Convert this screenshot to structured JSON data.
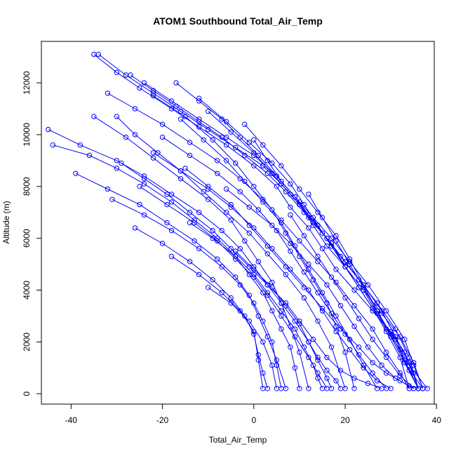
{
  "chart_data": {
    "type": "line",
    "title": "ATOM1 Southbound Total_Air_Temp",
    "xlabel": "Total_Air_Temp",
    "ylabel": "Altitude (m)",
    "xlim": [
      -46.5,
      39.5
    ],
    "ylim": [
      -400,
      13600
    ],
    "xticks": [
      -40,
      -20,
      0,
      20,
      40
    ],
    "yticks": [
      0,
      2000,
      4000,
      6000,
      8000,
      10000,
      12000
    ],
    "grid": false,
    "legend": "none",
    "marker": "open-circle",
    "color": "#0000ff",
    "series": [
      {
        "x": [
          -35,
          -30,
          -25,
          -18,
          -12,
          -6,
          0,
          5,
          8,
          12,
          15,
          18,
          22,
          26,
          30,
          33,
          35,
          36
        ],
        "y": [
          13100,
          12400,
          11800,
          11000,
          10300,
          9600,
          8800,
          8000,
          7200,
          6400,
          5600,
          4800,
          4000,
          3200,
          2400,
          1600,
          800,
          200
        ]
      },
      {
        "x": [
          -34,
          -28,
          -22,
          -16,
          -10,
          -4,
          2,
          6,
          10,
          13,
          16,
          20,
          24,
          28,
          32,
          35,
          37
        ],
        "y": [
          13100,
          12300,
          11600,
          10900,
          10200,
          9500,
          8800,
          8100,
          7300,
          6500,
          5700,
          4900,
          4000,
          3100,
          2200,
          1200,
          200
        ]
      },
      {
        "x": [
          -27,
          -22,
          -17,
          -12,
          -7,
          -2,
          3,
          7,
          11,
          15,
          19,
          23,
          27,
          31,
          34,
          36
        ],
        "y": [
          12300,
          11700,
          11100,
          10500,
          9900,
          9200,
          8500,
          7800,
          7000,
          6200,
          5300,
          4400,
          3500,
          2500,
          1400,
          200
        ]
      },
      {
        "x": [
          -24,
          -18,
          -12,
          -6,
          0,
          5,
          9,
          13,
          17,
          21,
          25,
          29,
          33,
          35,
          37
        ],
        "y": [
          12000,
          11300,
          10600,
          9900,
          9200,
          8400,
          7600,
          6800,
          6000,
          5100,
          4200,
          3200,
          2100,
          1100,
          200
        ]
      },
      {
        "x": [
          -32,
          -26,
          -20,
          -14,
          -8,
          -3,
          2,
          6,
          10,
          14,
          18,
          22,
          26,
          29,
          32,
          34
        ],
        "y": [
          11600,
          11000,
          10400,
          9700,
          9000,
          8300,
          7500,
          6700,
          5900,
          5100,
          4300,
          3400,
          2500,
          1600,
          800,
          200
        ]
      },
      {
        "x": [
          -17,
          -12,
          -7,
          -3,
          1,
          5,
          9,
          12,
          16,
          20,
          24,
          28,
          31,
          34,
          36
        ],
        "y": [
          12000,
          11300,
          10600,
          9900,
          9200,
          8400,
          7600,
          6800,
          6000,
          5100,
          4200,
          3200,
          2200,
          1200,
          200
        ]
      },
      {
        "x": [
          -12,
          -6,
          -1,
          4,
          8,
          11,
          14,
          17,
          20,
          23,
          26,
          29,
          32,
          34
        ],
        "y": [
          11400,
          10500,
          9700,
          8900,
          8100,
          7300,
          6500,
          5700,
          4900,
          4100,
          3300,
          2400,
          1400,
          200
        ]
      },
      {
        "x": [
          -45,
          -38,
          -30,
          -24,
          -18,
          -12,
          -7,
          -3,
          0,
          3,
          6,
          9,
          12,
          14,
          16,
          17
        ],
        "y": [
          10200,
          9600,
          9000,
          8400,
          7700,
          7000,
          6300,
          5600,
          4900,
          4200,
          3500,
          2800,
          2000,
          1300,
          600,
          200
        ]
      },
      {
        "x": [
          -44,
          -36,
          -30,
          -24,
          -18,
          -13,
          -8,
          -4,
          -1,
          2,
          4,
          6,
          8,
          9,
          10
        ],
        "y": [
          9600,
          9200,
          8700,
          8100,
          7400,
          6700,
          6000,
          5300,
          4600,
          3900,
          3200,
          2500,
          1800,
          1000,
          200
        ]
      },
      {
        "x": [
          -35,
          -28,
          -22,
          -16,
          -10,
          -5,
          -2,
          1,
          4,
          6,
          8,
          10,
          12
        ],
        "y": [
          10700,
          9900,
          9100,
          8300,
          7500,
          6700,
          5900,
          5100,
          4300,
          3500,
          2600,
          1600,
          200
        ]
      },
      {
        "x": [
          -39,
          -32,
          -25,
          -19,
          -13,
          -8,
          -4,
          -1,
          1,
          3,
          5,
          7
        ],
        "y": [
          8500,
          7900,
          7300,
          6600,
          5900,
          5200,
          4500,
          3800,
          3000,
          2200,
          1300,
          200
        ]
      },
      {
        "x": [
          -31,
          -24,
          -18,
          -12,
          -7,
          -3,
          0,
          2,
          4,
          5,
          6
        ],
        "y": [
          7500,
          6900,
          6300,
          5600,
          4900,
          4200,
          3500,
          2800,
          2000,
          1100,
          200
        ]
      },
      {
        "x": [
          -26,
          -20,
          -14,
          -9,
          -5,
          -2,
          0,
          1,
          2,
          3
        ],
        "y": [
          6400,
          5800,
          5100,
          4400,
          3700,
          3000,
          2300,
          1500,
          800,
          200
        ]
      },
      {
        "x": [
          -18,
          -12,
          -7,
          -3,
          0,
          1,
          2
        ],
        "y": [
          5300,
          4600,
          3900,
          3200,
          2400,
          1300,
          200
        ]
      },
      {
        "x": [
          -10,
          -5,
          -1,
          2,
          4,
          5
        ],
        "y": [
          4100,
          3500,
          2800,
          2000,
          1100,
          200
        ]
      },
      {
        "x": [
          -29,
          -24,
          -19,
          -14,
          -9,
          -5,
          -1,
          3,
          7,
          10,
          13,
          16,
          19,
          22,
          25,
          28
        ],
        "y": [
          8900,
          8300,
          7700,
          7000,
          6300,
          5600,
          4900,
          4200,
          3500,
          2800,
          2100,
          1400,
          900,
          600,
          400,
          200
        ]
      },
      {
        "x": [
          -22,
          -16,
          -10,
          -5,
          0,
          4,
          8,
          12,
          15,
          18,
          21,
          24,
          27,
          30
        ],
        "y": [
          9300,
          8600,
          7900,
          7200,
          6400,
          5600,
          4800,
          4000,
          3200,
          2400,
          1700,
          1000,
          500,
          200
        ]
      },
      {
        "x": [
          -30,
          -26,
          -21,
          -16,
          -11,
          -6,
          -1,
          3,
          7,
          11,
          14,
          17,
          20
        ],
        "y": [
          10700,
          10000,
          9300,
          8600,
          7800,
          7000,
          6200,
          5400,
          4600,
          3700,
          2800,
          1800,
          200
        ]
      },
      {
        "x": [
          -10,
          -5,
          0,
          4,
          8,
          12,
          16,
          20,
          24,
          28,
          31,
          33,
          36
        ],
        "y": [
          10900,
          10100,
          9300,
          8500,
          7700,
          6900,
          6000,
          5100,
          4200,
          3200,
          2200,
          1200,
          200
        ]
      },
      {
        "x": [
          -2,
          2,
          6,
          10,
          14,
          18,
          21,
          24,
          27,
          30,
          33,
          37
        ],
        "y": [
          10400,
          9600,
          8800,
          7900,
          7000,
          6100,
          5200,
          4200,
          3200,
          2200,
          1200,
          200
        ]
      },
      {
        "x": [
          0,
          3,
          6,
          10,
          13,
          17,
          20,
          24,
          27,
          31,
          34,
          38
        ],
        "y": [
          9800,
          9000,
          8200,
          7400,
          6600,
          5800,
          4900,
          4000,
          3100,
          2100,
          1100,
          200
        ]
      },
      {
        "x": [
          -20,
          -14,
          -8,
          -3,
          1,
          5,
          8,
          11,
          14,
          17,
          20,
          23,
          26,
          29
        ],
        "y": [
          9900,
          9200,
          8500,
          7800,
          7100,
          6300,
          5500,
          4700,
          3900,
          3100,
          2300,
          1500,
          800,
          200
        ]
      },
      {
        "x": [
          -25,
          -19,
          -13,
          -8,
          -4,
          0,
          3,
          6,
          9,
          12,
          14,
          16
        ],
        "y": [
          8000,
          7300,
          6600,
          5900,
          5200,
          4500,
          3800,
          3000,
          2200,
          1400,
          800,
          200
        ]
      },
      {
        "x": [
          -15,
          -10,
          -5,
          -1,
          3,
          7,
          11,
          15,
          19,
          23,
          26,
          29,
          32,
          35
        ],
        "y": [
          8700,
          8000,
          7300,
          6500,
          5700,
          4900,
          4100,
          3300,
          2500,
          1800,
          1200,
          800,
          500,
          200
        ]
      },
      {
        "x": [
          -6,
          -1,
          4,
          8,
          12,
          16,
          19,
          22,
          25,
          28,
          31,
          34,
          36
        ],
        "y": [
          7900,
          7200,
          6500,
          5800,
          5000,
          4200,
          3400,
          2600,
          1800,
          1100,
          600,
          300,
          200
        ]
      },
      {
        "x": [
          2,
          6,
          10,
          14,
          17,
          20,
          23,
          26,
          29,
          32,
          34,
          36
        ],
        "y": [
          8800,
          8100,
          7300,
          6500,
          5700,
          4900,
          4100,
          3300,
          2500,
          1700,
          900,
          200
        ]
      },
      {
        "x": [
          -14,
          -9,
          -4,
          0,
          3,
          6,
          9,
          11,
          13,
          14,
          15
        ],
        "y": [
          6600,
          6000,
          5300,
          4600,
          3900,
          3200,
          2500,
          1800,
          1100,
          600,
          200
        ]
      },
      {
        "x": [
          -4,
          0,
          4,
          7,
          10,
          12,
          14,
          16,
          18,
          19
        ],
        "y": [
          5500,
          4800,
          4100,
          3400,
          2700,
          2000,
          1400,
          900,
          500,
          200
        ]
      },
      {
        "x": [
          8,
          11,
          14,
          17,
          20,
          23,
          26,
          29,
          32,
          35
        ],
        "y": [
          6900,
          6100,
          5300,
          4500,
          3700,
          2900,
          2100,
          1400,
          700,
          200
        ]
      },
      {
        "x": [
          12,
          15,
          18,
          21,
          24,
          27,
          30,
          33,
          36
        ],
        "y": [
          7700,
          6800,
          5900,
          5000,
          4100,
          3200,
          2300,
          1300,
          200
        ]
      },
      {
        "x": [
          -22,
          -15,
          -9,
          -4,
          0,
          4,
          7,
          10,
          13,
          16,
          18,
          20,
          22
        ],
        "y": [
          11500,
          10700,
          9800,
          8900,
          8000,
          7100,
          6200,
          5300,
          4400,
          3500,
          2600,
          1600,
          200
        ]
      },
      {
        "x": [
          -16,
          -11,
          -6,
          -2,
          2,
          6,
          9,
          12,
          15,
          18,
          21,
          24,
          27
        ],
        "y": [
          10600,
          9800,
          9000,
          8200,
          7400,
          6600,
          5700,
          4800,
          3900,
          3000,
          2100,
          1100,
          200
        ]
      }
    ]
  }
}
